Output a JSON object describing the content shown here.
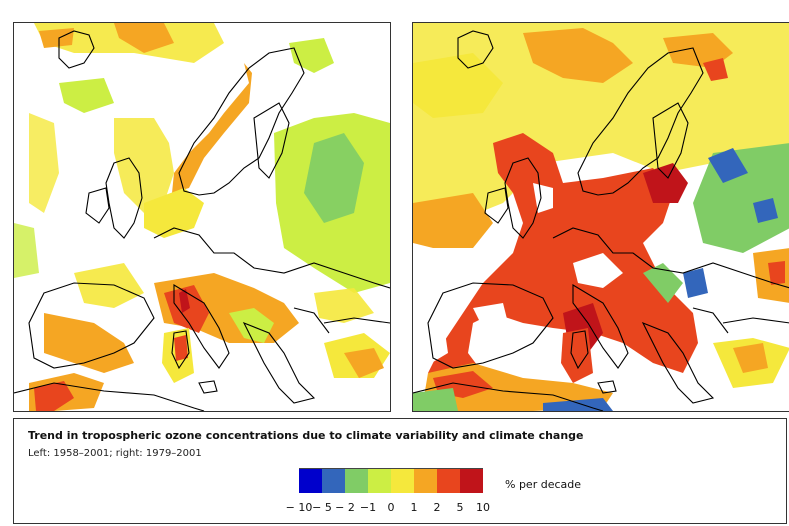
{
  "legend": {
    "title": "Trend in tropospheric ozone concentrations due to climate variability and climate change",
    "subtitle": "Left: 1958–2001; right: 1979–2001",
    "unit": "% per decade",
    "swatches": [
      {
        "color": "#0000cc"
      },
      {
        "color": "#3366bb"
      },
      {
        "color": "#80cc66"
      },
      {
        "color": "#ccee44"
      },
      {
        "color": "#f5e83c"
      },
      {
        "color": "#f5a623"
      },
      {
        "color": "#e8451e"
      },
      {
        "color": "#c0141a"
      }
    ],
    "ticks": [
      "− 10",
      "− 5",
      "− 2",
      "−1",
      "0",
      "1",
      "2",
      "5",
      "10"
    ]
  },
  "maps": {
    "left_label": "1958–2001",
    "right_label": "1979–2001"
  }
}
